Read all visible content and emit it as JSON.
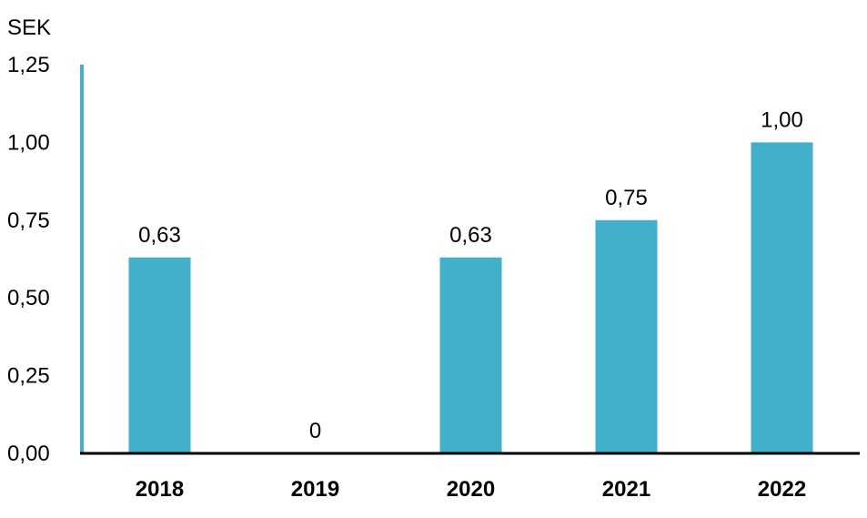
{
  "chart_data": {
    "type": "bar",
    "unit_label": "SEK",
    "categories": [
      "2018",
      "2019",
      "2020",
      "2021",
      "2022"
    ],
    "values": [
      0.63,
      0,
      0.63,
      0.75,
      1.0
    ],
    "data_labels": [
      "0,63",
      "0",
      "0,63",
      "0,75",
      "1,00"
    ],
    "yticks": [
      0,
      0.25,
      0.5,
      0.75,
      1.0,
      1.25
    ],
    "ytick_labels": [
      "0,00",
      "0,25",
      "0,50",
      "0,75",
      "1,00",
      "1,25"
    ],
    "ylim": [
      0,
      1.25
    ],
    "grid": false,
    "colors": {
      "bar": "#42b0c8",
      "y_axis": "#42b0c8",
      "x_axis": "#000000"
    }
  }
}
